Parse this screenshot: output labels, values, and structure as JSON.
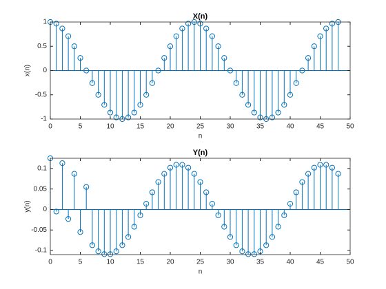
{
  "chart_data": [
    {
      "type": "stem",
      "title": "X(n)",
      "xlabel": "n",
      "ylabel": "x(n)",
      "color": "#0072bd",
      "x": [
        0,
        1,
        2,
        3,
        4,
        5,
        6,
        7,
        8,
        9,
        10,
        11,
        12,
        13,
        14,
        15,
        16,
        17,
        18,
        19,
        20,
        21,
        22,
        23,
        24,
        25,
        26,
        27,
        28,
        29,
        30,
        31,
        32,
        33,
        34,
        35,
        36,
        37,
        38,
        39,
        40,
        41,
        42,
        43,
        44,
        45,
        46,
        47,
        48
      ],
      "values": [
        1,
        0.966,
        0.866,
        0.707,
        0.5,
        0.259,
        0,
        -0.259,
        -0.5,
        -0.707,
        -0.866,
        -0.966,
        -1,
        -0.966,
        -0.866,
        -0.707,
        -0.5,
        -0.259,
        0,
        0.259,
        0.5,
        0.707,
        0.866,
        0.966,
        1,
        0.966,
        0.866,
        0.707,
        0.5,
        0.259,
        0,
        -0.259,
        -0.5,
        -0.707,
        -0.866,
        -0.966,
        -1,
        -0.966,
        -0.866,
        -0.707,
        -0.5,
        -0.259,
        0,
        0.259,
        0.5,
        0.707,
        0.866,
        0.966,
        1
      ],
      "xlim": [
        0,
        50
      ],
      "xticks": [
        0,
        5,
        10,
        15,
        20,
        25,
        30,
        35,
        40,
        45,
        50
      ],
      "ylim": [
        -1,
        1
      ],
      "yticks": [
        -1,
        -0.5,
        0,
        0.5,
        1
      ]
    },
    {
      "type": "stem",
      "title": "Y(n)",
      "xlabel": "n",
      "ylabel": "y(n)",
      "color": "#0072bd",
      "x": [
        0,
        1,
        2,
        3,
        4,
        5,
        6,
        7,
        8,
        9,
        10,
        11,
        12,
        13,
        14,
        15,
        16,
        17,
        18,
        19,
        20,
        21,
        22,
        23,
        24,
        25,
        26,
        27,
        28,
        29,
        30,
        31,
        32,
        33,
        34,
        35,
        36,
        37,
        38,
        39,
        40,
        41,
        42,
        43,
        44,
        45,
        46,
        47,
        48
      ],
      "values": [
        0.125,
        -0.005,
        0.113,
        -0.023,
        0.087,
        -0.055,
        0.055,
        -0.087,
        -0.102,
        -0.109,
        -0.109,
        -0.102,
        -0.087,
        -0.067,
        -0.042,
        -0.014,
        0.014,
        0.042,
        0.067,
        0.087,
        0.102,
        0.109,
        0.109,
        0.102,
        0.087,
        0.067,
        0.042,
        0.014,
        -0.014,
        -0.042,
        -0.067,
        -0.087,
        -0.102,
        -0.109,
        -0.109,
        -0.102,
        -0.087,
        -0.067,
        -0.042,
        -0.014,
        0.014,
        0.042,
        0.067,
        0.087,
        0.102,
        0.109,
        0.109,
        0.102,
        0.087
      ],
      "xlim": [
        0,
        50
      ],
      "xticks": [
        0,
        5,
        10,
        15,
        20,
        25,
        30,
        35,
        40,
        45,
        50
      ],
      "ylim": [
        -0.11,
        0.125
      ],
      "yticks": [
        -0.1,
        -0.05,
        0,
        0.05,
        0.1
      ]
    }
  ]
}
